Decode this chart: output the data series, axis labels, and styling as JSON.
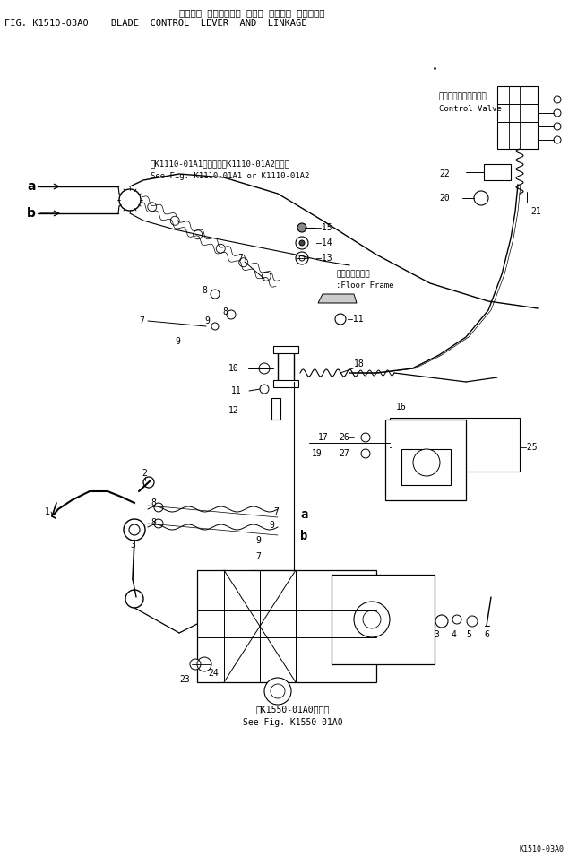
{
  "title_jp": "ブレード コントロール レバー ・および リンケージ",
  "title_en": "FIG. K1510-03A0    BLADE  CONTROL  LEVER  AND  LINKAGE",
  "bg": "#ffffff",
  "lc": "#000000",
  "ref_top_jp": "第K1110-01A1図または第K1110-01A2図参照",
  "ref_top_en": "See Fig. K1110-01A1 or K1110-01A2",
  "cv_jp": "コントロールバルブ、",
  "cv_en": "Control Valve",
  "ff_jp": "フロアフレーム",
  "ff_en": ":Floor Frame",
  "ref_bot_jp": "第K1550-01A0図参照",
  "ref_bot_en": "See Fig. K1550-01A0",
  "page_no": "K1510-03A0"
}
